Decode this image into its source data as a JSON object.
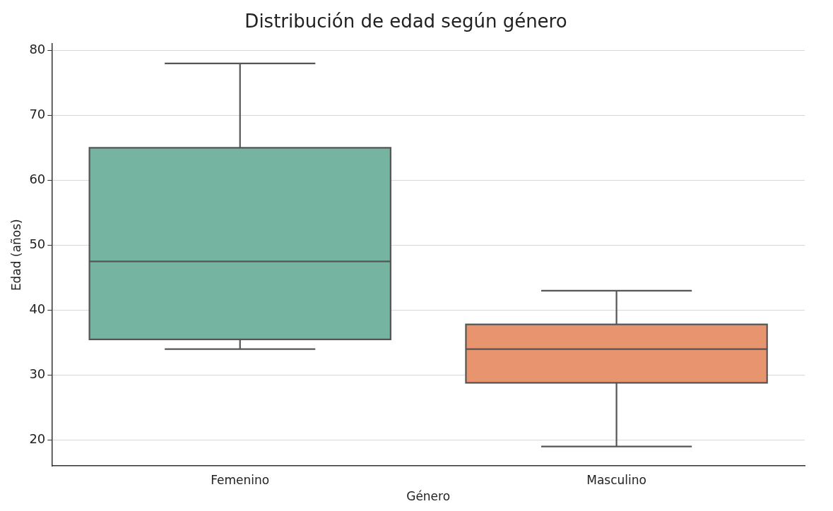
{
  "chart_data": {
    "type": "box",
    "title": "Distribución de edad según género",
    "xlabel": "Género",
    "ylabel": "Edad (años)",
    "categories": [
      "Femenino",
      "Masculino"
    ],
    "boxes": [
      {
        "low": 34,
        "q1": 35.5,
        "median": 47.5,
        "q3": 65,
        "high": 78
      },
      {
        "low": 19,
        "q1": 28.8,
        "median": 34,
        "q3": 37.8,
        "high": 43
      }
    ],
    "colors": [
      "#74b4a0",
      "#e8956f"
    ],
    "ylim": [
      16,
      81
    ],
    "yticks": [
      20,
      30,
      40,
      50,
      60,
      70,
      80
    ],
    "grid": "y",
    "legend": false
  }
}
